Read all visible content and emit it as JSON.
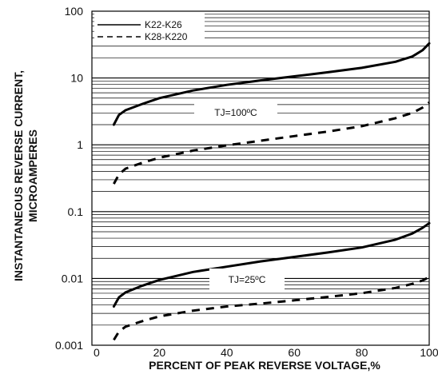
{
  "chart_data": {
    "type": "line",
    "xlabel": "PERCENT OF PEAK REVERSE VOLTAGE,%",
    "ylabel_line1": "INSTANTANEOUS REVERSE CURRENT,",
    "ylabel_line2": "MICROAMPERES",
    "xlim": [
      0,
      100
    ],
    "ylim": [
      0.001,
      100
    ],
    "yscale": "log",
    "x_ticks": [
      0,
      20,
      40,
      60,
      80,
      100
    ],
    "x_tick_labels": [
      "0",
      "20",
      "40",
      "60",
      "80",
      "100"
    ],
    "y_ticks": [
      0.001,
      0.01,
      0.1,
      1,
      10,
      100
    ],
    "y_tick_labels": [
      "0.001",
      "0.01",
      "0.1",
      "1",
      "10",
      "100"
    ],
    "grid": "horizontal minor log gridlines",
    "legend": {
      "position": "top-left",
      "entries": [
        {
          "label": "K22-K26",
          "style": "solid"
        },
        {
          "label": "K28-K220",
          "style": "dashed"
        }
      ]
    },
    "annotations": [
      {
        "text": "TJ=100ºC",
        "x": 43,
        "y": 2.7
      },
      {
        "text": "TJ=25ºC",
        "x": 45,
        "y": 0.0062
      }
    ],
    "series": [
      {
        "name": "K22-K26",
        "condition": "TJ=100ºC",
        "style": "solid",
        "x": [
          6.5,
          8,
          10,
          15,
          20,
          30,
          40,
          50,
          60,
          70,
          80,
          90,
          95,
          98,
          100
        ],
        "y": [
          2.0,
          2.8,
          3.3,
          4.1,
          5.0,
          6.5,
          7.9,
          9.2,
          10.6,
          12.2,
          14.2,
          17.5,
          21,
          26,
          33
        ]
      },
      {
        "name": "K28-K220",
        "condition": "TJ=100ºC",
        "style": "dashed",
        "x": [
          6.5,
          8,
          10,
          15,
          20,
          30,
          40,
          50,
          60,
          70,
          80,
          90,
          95,
          98,
          100
        ],
        "y": [
          0.26,
          0.36,
          0.44,
          0.54,
          0.64,
          0.82,
          0.98,
          1.15,
          1.35,
          1.58,
          1.9,
          2.5,
          3.0,
          3.6,
          4.3
        ]
      },
      {
        "name": "K22-K26",
        "condition": "TJ=25ºC",
        "style": "solid",
        "x": [
          6.5,
          8,
          10,
          15,
          20,
          30,
          40,
          50,
          60,
          70,
          80,
          90,
          95,
          98,
          100
        ],
        "y": [
          0.0038,
          0.0052,
          0.0062,
          0.0078,
          0.0095,
          0.0125,
          0.015,
          0.018,
          0.021,
          0.0245,
          0.029,
          0.038,
          0.047,
          0.057,
          0.067
        ]
      },
      {
        "name": "K28-K220",
        "condition": "TJ=25ºC",
        "style": "dashed",
        "x": [
          6.5,
          8,
          10,
          15,
          20,
          30,
          40,
          50,
          60,
          70,
          80,
          90,
          95,
          98,
          100
        ],
        "y": [
          0.0012,
          0.0016,
          0.0019,
          0.0023,
          0.0027,
          0.0033,
          0.0038,
          0.0042,
          0.0047,
          0.0053,
          0.006,
          0.0072,
          0.0083,
          0.0093,
          0.0105
        ]
      }
    ]
  }
}
